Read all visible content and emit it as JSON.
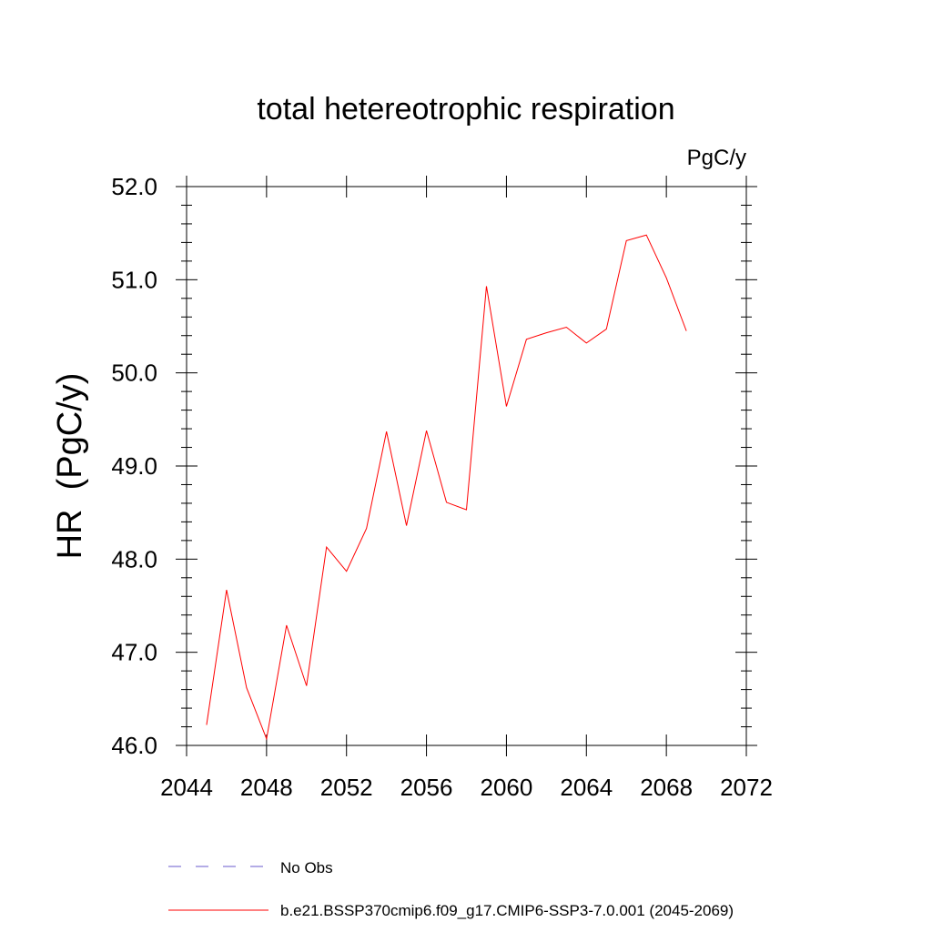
{
  "chart_data": {
    "type": "line",
    "title": "total hetereotrophic respiration",
    "units_label": "PgC/y",
    "xlabel": "",
    "ylabel": "HR  (PgC/y)",
    "xlim": [
      2044,
      2072
    ],
    "ylim": [
      46.0,
      52.0
    ],
    "x_ticks": [
      2044,
      2048,
      2052,
      2056,
      2060,
      2064,
      2068,
      2072
    ],
    "x_tick_labels": [
      "2044",
      "2048",
      "2052",
      "2056",
      "2060",
      "2064",
      "2068",
      "2072"
    ],
    "y_ticks": [
      46.0,
      47.0,
      48.0,
      49.0,
      50.0,
      51.0,
      52.0
    ],
    "y_tick_labels": [
      "46.0",
      "47.0",
      "48.0",
      "49.0",
      "50.0",
      "51.0",
      "52.0"
    ],
    "grid": false,
    "legend_position": "bottom",
    "series": [
      {
        "name": "b.e21.BSSP370cmip6.f09_g17.CMIP6-SSP3-7.0.001 (2045-2069)",
        "color": "#ff0000",
        "style": "solid",
        "x": [
          2045,
          2046,
          2047,
          2048,
          2049,
          2050,
          2051,
          2052,
          2053,
          2054,
          2055,
          2056,
          2057,
          2058,
          2059,
          2060,
          2061,
          2062,
          2063,
          2064,
          2065,
          2066,
          2067,
          2068,
          2069
        ],
        "y": [
          46.22,
          47.67,
          46.62,
          46.07,
          47.29,
          46.64,
          48.13,
          47.87,
          48.33,
          49.37,
          48.36,
          49.38,
          48.61,
          48.53,
          50.93,
          49.64,
          50.36,
          50.43,
          50.49,
          50.32,
          50.47,
          51.42,
          51.48,
          51.02,
          50.45
        ]
      }
    ],
    "legend": [
      {
        "label": "No Obs",
        "color": "#6a5acd",
        "style": "dashed"
      },
      {
        "label": "b.e21.BSSP370cmip6.f09_g17.CMIP6-SSP3-7.0.001 (2045-2069)",
        "color": "#ff0000",
        "style": "solid"
      }
    ]
  }
}
